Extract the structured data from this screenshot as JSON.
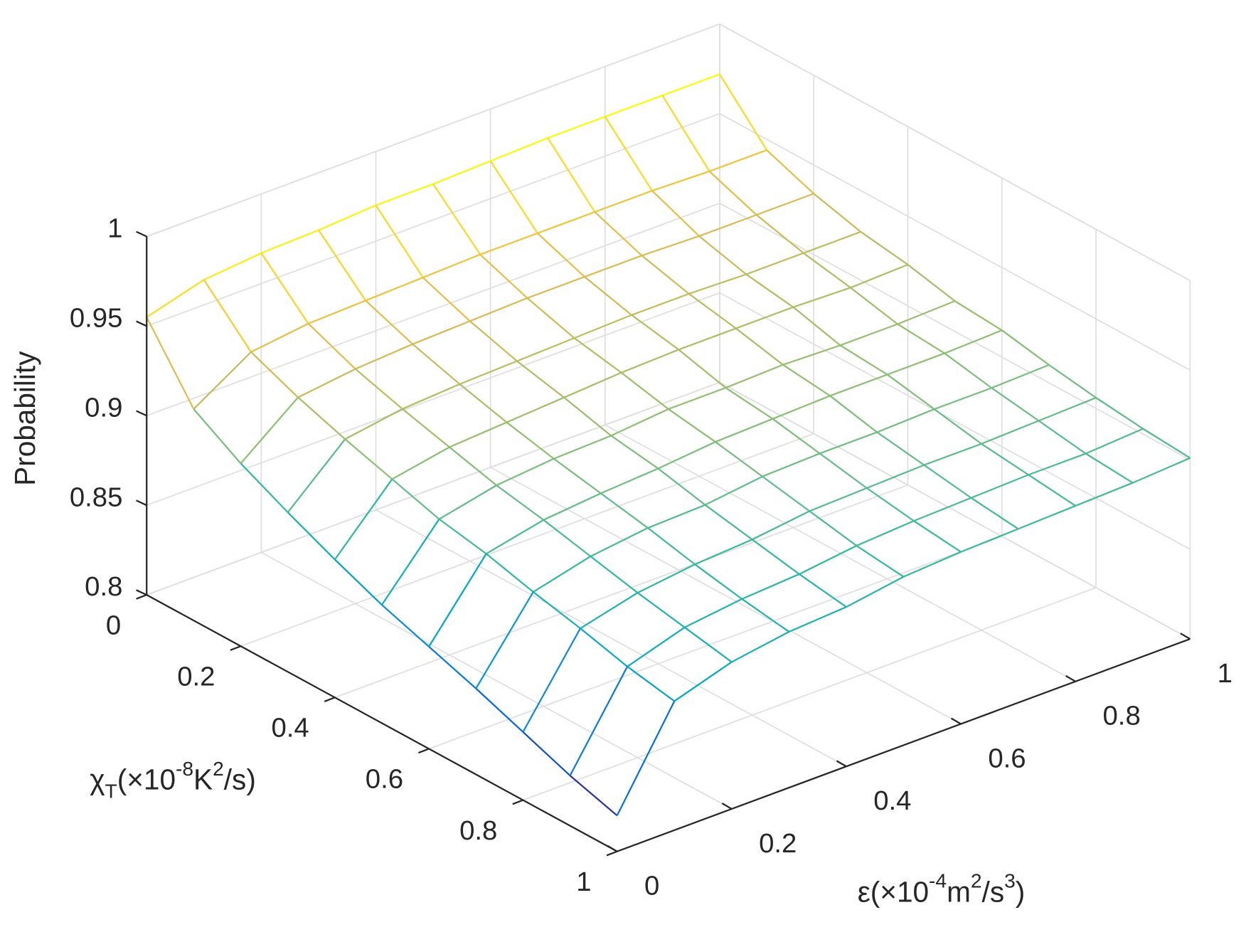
{
  "chart_data": {
    "type": "mesh",
    "zlabel": "Probability",
    "xlabel": [
      "ε(×10",
      "-4",
      "m",
      "2",
      "/s",
      "3",
      ")"
    ],
    "ylabel": [
      "χ",
      "T",
      "(×10",
      "-8",
      "K",
      "2",
      "/s)"
    ],
    "x": [
      0,
      0.1,
      0.2,
      0.3,
      0.4,
      0.5,
      0.6,
      0.7,
      0.8,
      0.9,
      1
    ],
    "y": [
      0,
      0.1,
      0.2,
      0.3,
      0.4,
      0.5,
      0.6,
      0.7,
      0.8,
      0.9,
      1
    ],
    "z": [
      [
        0.955,
        0.964,
        0.967,
        0.968,
        0.97,
        0.97,
        0.971,
        0.972,
        0.972,
        0.972,
        0.972
      ],
      [
        0.918,
        0.938,
        0.942,
        0.943,
        0.944,
        0.945,
        0.945,
        0.945,
        0.945,
        0.944,
        0.944
      ],
      [
        0.902,
        0.927,
        0.931,
        0.933,
        0.934,
        0.935,
        0.935,
        0.935,
        0.934,
        0.934,
        0.934
      ],
      [
        0.889,
        0.918,
        0.923,
        0.925,
        0.926,
        0.927,
        0.928,
        0.928,
        0.927,
        0.927,
        0.927
      ],
      [
        0.877,
        0.91,
        0.916,
        0.918,
        0.92,
        0.922,
        0.923,
        0.923,
        0.923,
        0.922,
        0.923
      ],
      [
        0.866,
        0.902,
        0.909,
        0.912,
        0.913,
        0.916,
        0.916,
        0.917,
        0.916,
        0.916,
        0.917
      ],
      [
        0.857,
        0.897,
        0.904,
        0.907,
        0.909,
        0.912,
        0.913,
        0.914,
        0.914,
        0.914,
        0.915
      ],
      [
        0.848,
        0.89,
        0.898,
        0.902,
        0.903,
        0.907,
        0.908,
        0.908,
        0.909,
        0.909,
        0.91
      ],
      [
        0.838,
        0.884,
        0.892,
        0.896,
        0.898,
        0.902,
        0.903,
        0.904,
        0.904,
        0.905,
        0.906
      ],
      [
        0.828,
        0.877,
        0.887,
        0.891,
        0.893,
        0.897,
        0.899,
        0.9,
        0.901,
        0.901,
        0.903
      ],
      [
        0.82,
        0.872,
        0.882,
        0.887,
        0.889,
        0.894,
        0.896,
        0.897,
        0.898,
        0.899,
        0.901
      ]
    ],
    "colormap": "parula",
    "xlim": [
      0,
      1
    ],
    "xticks": [
      0,
      0.2,
      0.4,
      0.6,
      0.8,
      1
    ],
    "ylim": [
      0,
      1
    ],
    "yticks": [
      0,
      0.2,
      0.4,
      0.6,
      0.8,
      1
    ],
    "zlim": [
      0.8,
      1
    ],
    "zticks": [
      0.8,
      0.85,
      0.9,
      0.95,
      1
    ],
    "grid": true
  }
}
